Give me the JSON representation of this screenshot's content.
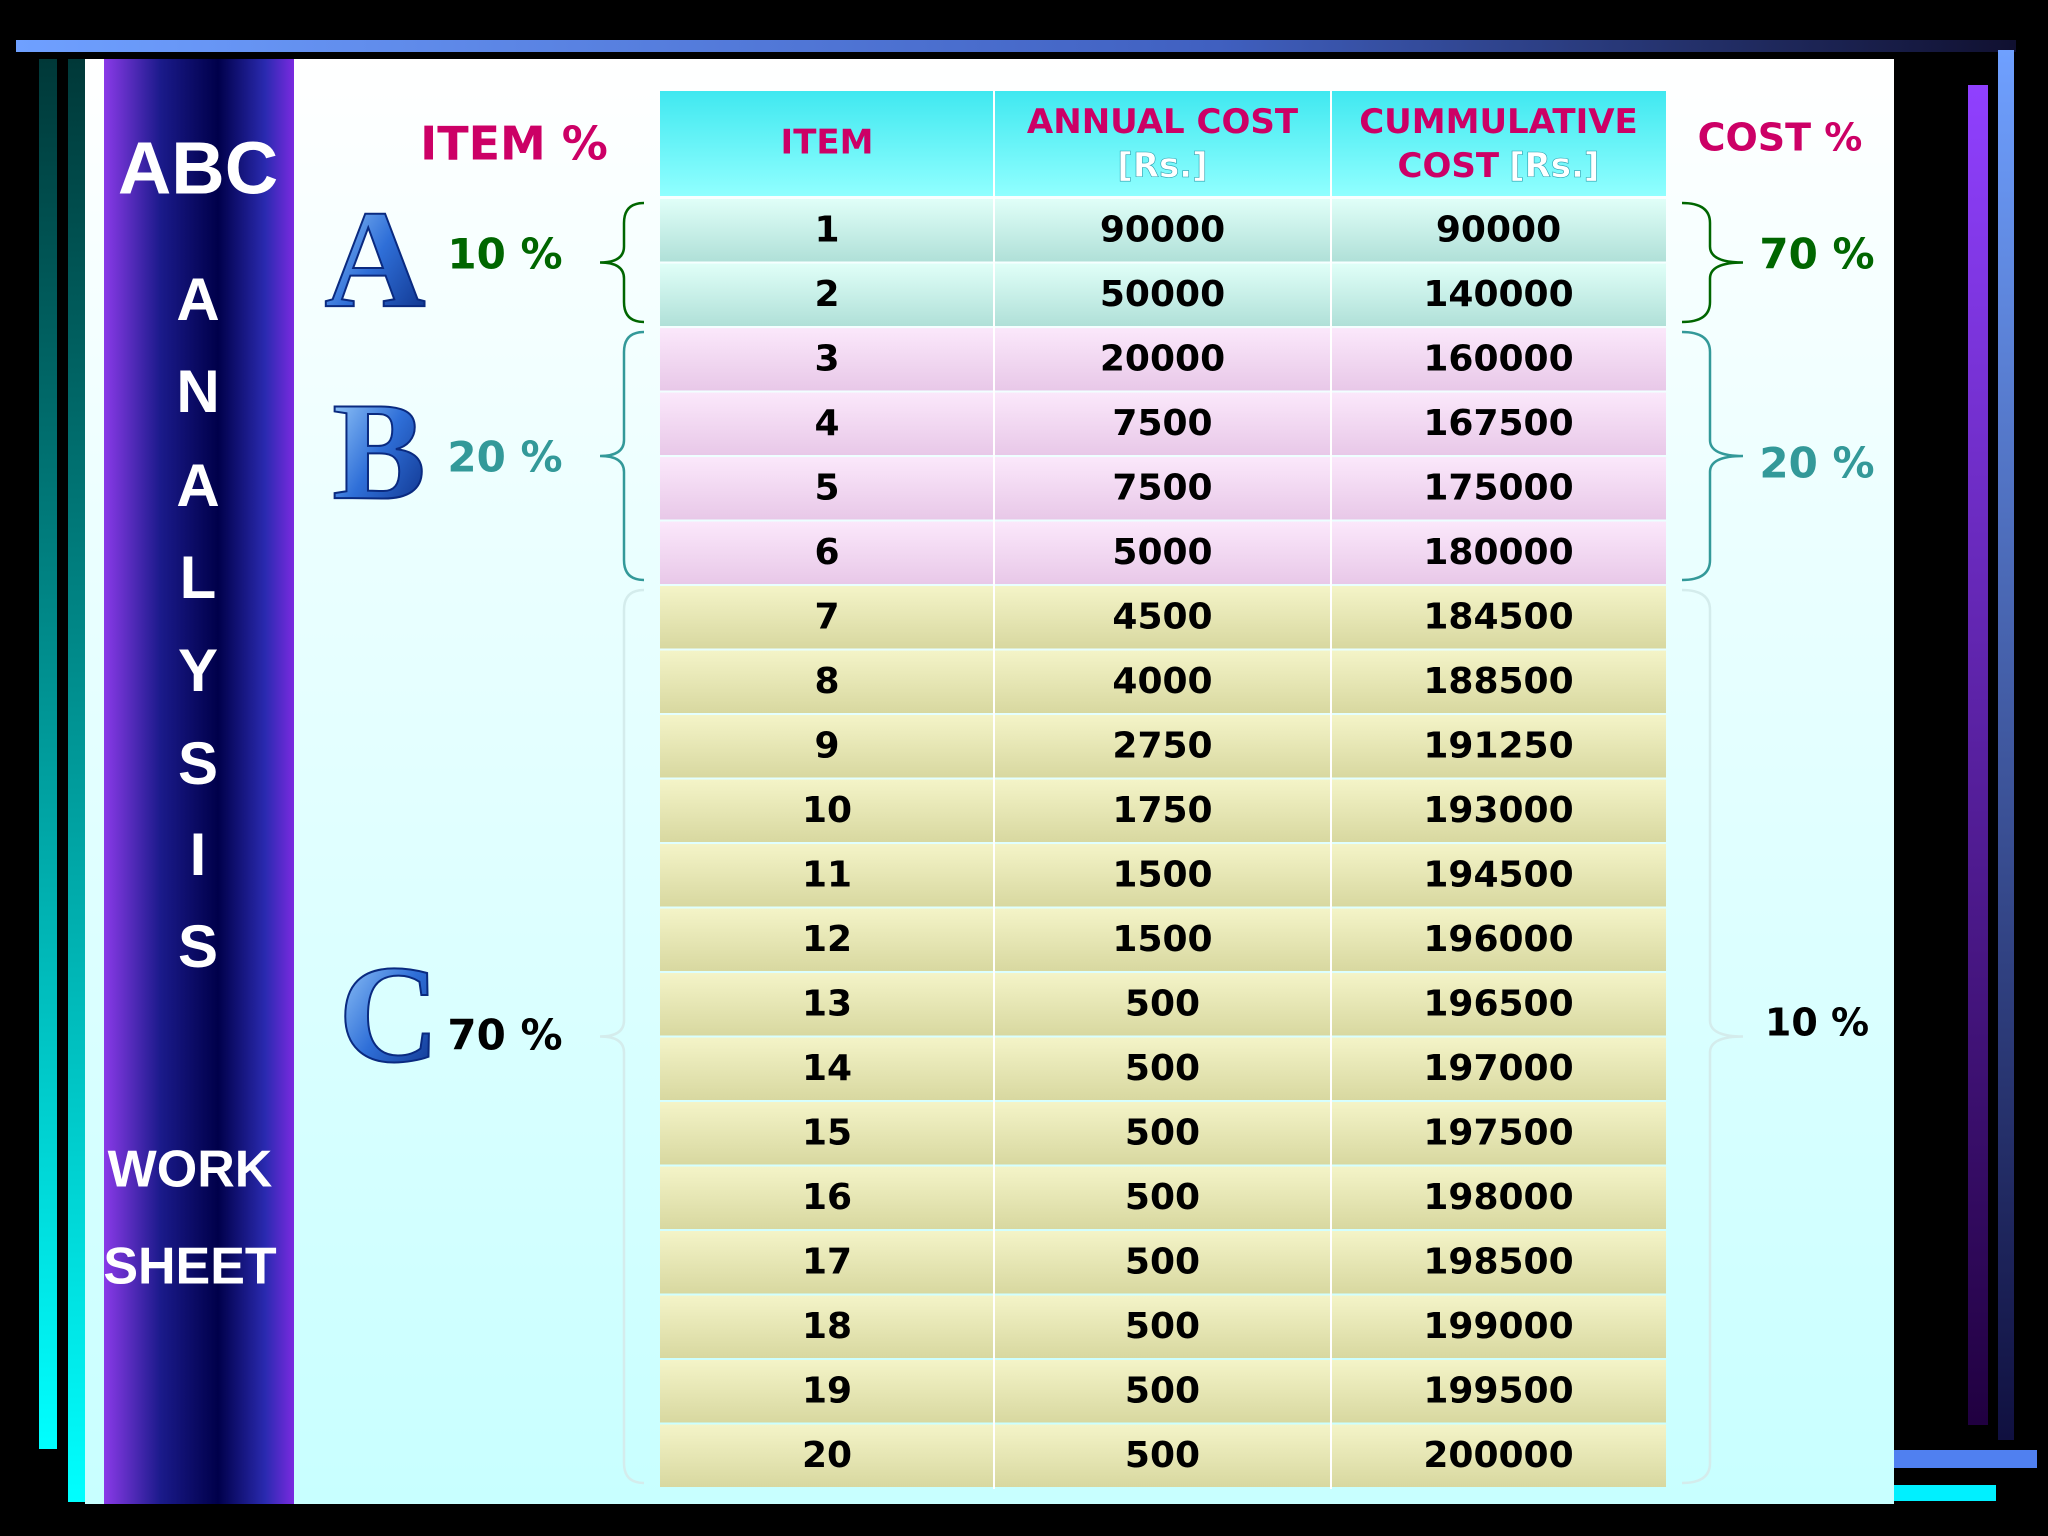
{
  "sidebar": {
    "title": "ABC",
    "letters": [
      "A",
      "N",
      "A",
      "L",
      "Y",
      "S",
      "I",
      "S"
    ],
    "footer": [
      "WORK",
      "SHEET"
    ]
  },
  "item_pct_header": "ITEM %",
  "cost_pct_header": "COST %",
  "table": {
    "headers": [
      [
        [
          "ITEM"
        ]
      ],
      [
        [
          "ANNUAL COST"
        ],
        [
          "[Rs.]"
        ]
      ],
      [
        [
          "CUMMULATIVE"
        ],
        [
          "COST",
          "[Rs.]"
        ]
      ]
    ]
  },
  "classes": [
    {
      "letter": "A",
      "item_pct": "10 %",
      "cost_pct": "70 %",
      "rows": [
        [
          1,
          90000,
          90000
        ],
        [
          2,
          50000,
          140000
        ]
      ]
    },
    {
      "letter": "B",
      "item_pct": "20 %",
      "cost_pct": "20 %",
      "rows": [
        [
          3,
          20000,
          160000
        ],
        [
          4,
          7500,
          167500
        ],
        [
          5,
          7500,
          175000
        ],
        [
          6,
          5000,
          180000
        ]
      ]
    },
    {
      "letter": "C",
      "item_pct": "70 %",
      "cost_pct": "10 %",
      "rows": [
        [
          7,
          4500,
          184500
        ],
        [
          8,
          4000,
          188500
        ],
        [
          9,
          2750,
          191250
        ],
        [
          10,
          1750,
          193000
        ],
        [
          11,
          1500,
          194500
        ],
        [
          12,
          1500,
          196000
        ],
        [
          13,
          500,
          196500
        ],
        [
          14,
          500,
          197000
        ],
        [
          15,
          500,
          197500
        ],
        [
          16,
          500,
          198000
        ],
        [
          17,
          500,
          198500
        ],
        [
          18,
          500,
          199000
        ],
        [
          19,
          500,
          199500
        ],
        [
          20,
          500,
          200000
        ]
      ]
    }
  ]
}
